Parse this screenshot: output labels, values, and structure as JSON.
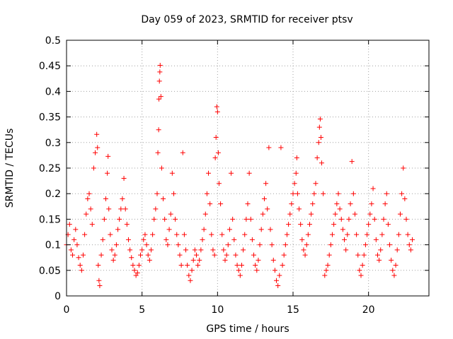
{
  "chart_data": {
    "type": "scatter",
    "title": "Day 059 of 2023, SRMTID for receiver ptsv",
    "xlabel": "GPS time / hours",
    "ylabel": "SRMTID / TECUs",
    "xlim": [
      0,
      24
    ],
    "ylim": [
      0,
      0.5
    ],
    "xticks": [
      0,
      5,
      10,
      15,
      20
    ],
    "xtick_labels": [
      "0",
      "5",
      "10",
      "15",
      "20"
    ],
    "yticks": [
      0,
      0.05,
      0.1,
      0.15,
      0.2,
      0.25,
      0.3,
      0.35,
      0.4,
      0.45,
      0.5
    ],
    "ytick_labels": [
      "0",
      "0.05",
      "0.1",
      "0.15",
      "0.2",
      "0.25",
      "0.3",
      "0.35",
      "0.4",
      "0.45",
      "0.5"
    ],
    "grid": true,
    "marker": "+",
    "color": "#ff0000",
    "series": [
      {
        "name": "SRMTID",
        "points": [
          [
            0.0,
            0.1
          ],
          [
            0.1,
            0.12
          ],
          [
            0.2,
            0.14
          ],
          [
            0.3,
            0.09
          ],
          [
            0.4,
            0.08
          ],
          [
            0.5,
            0.11
          ],
          [
            0.6,
            0.13
          ],
          [
            0.7,
            0.1
          ],
          [
            0.8,
            0.075
          ],
          [
            0.9,
            0.06
          ],
          [
            1.0,
            0.05
          ],
          [
            1.1,
            0.08
          ],
          [
            1.2,
            0.12
          ],
          [
            1.3,
            0.16
          ],
          [
            1.4,
            0.19
          ],
          [
            1.5,
            0.2
          ],
          [
            1.6,
            0.17
          ],
          [
            1.7,
            0.14
          ],
          [
            1.8,
            0.25
          ],
          [
            1.9,
            0.28
          ],
          [
            2.0,
            0.316
          ],
          [
            2.05,
            0.29
          ],
          [
            2.1,
            0.06
          ],
          [
            2.15,
            0.03
          ],
          [
            2.2,
            0.02
          ],
          [
            2.3,
            0.08
          ],
          [
            2.4,
            0.11
          ],
          [
            2.5,
            0.15
          ],
          [
            2.6,
            0.19
          ],
          [
            2.7,
            0.24
          ],
          [
            2.75,
            0.273
          ],
          [
            2.8,
            0.17
          ],
          [
            2.9,
            0.12
          ],
          [
            3.0,
            0.09
          ],
          [
            3.1,
            0.07
          ],
          [
            3.2,
            0.08
          ],
          [
            3.3,
            0.1
          ],
          [
            3.4,
            0.13
          ],
          [
            3.5,
            0.15
          ],
          [
            3.6,
            0.17
          ],
          [
            3.7,
            0.19
          ],
          [
            3.8,
            0.23
          ],
          [
            3.9,
            0.17
          ],
          [
            4.0,
            0.14
          ],
          [
            4.1,
            0.11
          ],
          [
            4.2,
            0.09
          ],
          [
            4.3,
            0.075
          ],
          [
            4.4,
            0.06
          ],
          [
            4.5,
            0.05
          ],
          [
            4.6,
            0.04
          ],
          [
            4.7,
            0.045
          ],
          [
            4.8,
            0.06
          ],
          [
            4.9,
            0.08
          ],
          [
            5.0,
            0.09
          ],
          [
            5.1,
            0.11
          ],
          [
            5.2,
            0.12
          ],
          [
            5.3,
            0.1
          ],
          [
            5.4,
            0.08
          ],
          [
            5.5,
            0.07
          ],
          [
            5.6,
            0.09
          ],
          [
            5.7,
            0.12
          ],
          [
            5.8,
            0.15
          ],
          [
            5.9,
            0.17
          ],
          [
            6.0,
            0.2
          ],
          [
            6.05,
            0.28
          ],
          [
            6.1,
            0.325
          ],
          [
            6.12,
            0.385
          ],
          [
            6.15,
            0.42
          ],
          [
            6.18,
            0.438
          ],
          [
            6.2,
            0.451
          ],
          [
            6.25,
            0.39
          ],
          [
            6.3,
            0.25
          ],
          [
            6.4,
            0.19
          ],
          [
            6.5,
            0.15
          ],
          [
            6.6,
            0.11
          ],
          [
            6.7,
            0.1
          ],
          [
            6.8,
            0.13
          ],
          [
            6.9,
            0.16
          ],
          [
            7.0,
            0.24
          ],
          [
            7.1,
            0.2
          ],
          [
            7.2,
            0.15
          ],
          [
            7.3,
            0.12
          ],
          [
            7.4,
            0.1
          ],
          [
            7.5,
            0.08
          ],
          [
            7.6,
            0.06
          ],
          [
            7.7,
            0.28
          ],
          [
            7.8,
            0.12
          ],
          [
            7.9,
            0.09
          ],
          [
            8.0,
            0.06
          ],
          [
            8.1,
            0.04
          ],
          [
            8.2,
            0.03
          ],
          [
            8.3,
            0.05
          ],
          [
            8.4,
            0.07
          ],
          [
            8.5,
            0.09
          ],
          [
            8.6,
            0.08
          ],
          [
            8.7,
            0.06
          ],
          [
            8.8,
            0.07
          ],
          [
            8.9,
            0.09
          ],
          [
            9.0,
            0.11
          ],
          [
            9.1,
            0.13
          ],
          [
            9.2,
            0.16
          ],
          [
            9.3,
            0.2
          ],
          [
            9.4,
            0.24
          ],
          [
            9.5,
            0.18
          ],
          [
            9.6,
            0.12
          ],
          [
            9.7,
            0.09
          ],
          [
            9.8,
            0.08
          ],
          [
            9.85,
            0.27
          ],
          [
            9.9,
            0.31
          ],
          [
            9.95,
            0.37
          ],
          [
            10.0,
            0.36
          ],
          [
            10.05,
            0.28
          ],
          [
            10.1,
            0.22
          ],
          [
            10.2,
            0.18
          ],
          [
            10.3,
            0.12
          ],
          [
            10.4,
            0.09
          ],
          [
            10.5,
            0.07
          ],
          [
            10.6,
            0.08
          ],
          [
            10.7,
            0.1
          ],
          [
            10.8,
            0.13
          ],
          [
            10.9,
            0.24
          ],
          [
            11.0,
            0.15
          ],
          [
            11.1,
            0.11
          ],
          [
            11.2,
            0.08
          ],
          [
            11.3,
            0.06
          ],
          [
            11.4,
            0.05
          ],
          [
            11.5,
            0.04
          ],
          [
            11.6,
            0.06
          ],
          [
            11.7,
            0.09
          ],
          [
            11.8,
            0.12
          ],
          [
            11.9,
            0.15
          ],
          [
            12.0,
            0.18
          ],
          [
            12.1,
            0.24
          ],
          [
            12.2,
            0.15
          ],
          [
            12.3,
            0.11
          ],
          [
            12.4,
            0.08
          ],
          [
            12.5,
            0.06
          ],
          [
            12.6,
            0.05
          ],
          [
            12.7,
            0.07
          ],
          [
            12.8,
            0.1
          ],
          [
            12.9,
            0.13
          ],
          [
            13.0,
            0.16
          ],
          [
            13.1,
            0.19
          ],
          [
            13.2,
            0.22
          ],
          [
            13.3,
            0.17
          ],
          [
            13.4,
            0.29
          ],
          [
            13.5,
            0.13
          ],
          [
            13.6,
            0.1
          ],
          [
            13.7,
            0.07
          ],
          [
            13.8,
            0.05
          ],
          [
            13.9,
            0.03
          ],
          [
            14.0,
            0.02
          ],
          [
            14.1,
            0.04
          ],
          [
            14.2,
            0.29
          ],
          [
            14.3,
            0.06
          ],
          [
            14.4,
            0.08
          ],
          [
            14.5,
            0.1
          ],
          [
            14.6,
            0.12
          ],
          [
            14.7,
            0.14
          ],
          [
            14.8,
            0.16
          ],
          [
            14.9,
            0.18
          ],
          [
            15.0,
            0.2
          ],
          [
            15.1,
            0.22
          ],
          [
            15.2,
            0.24
          ],
          [
            15.25,
            0.27
          ],
          [
            15.3,
            0.2
          ],
          [
            15.4,
            0.17
          ],
          [
            15.5,
            0.14
          ],
          [
            15.6,
            0.11
          ],
          [
            15.7,
            0.09
          ],
          [
            15.8,
            0.08
          ],
          [
            15.9,
            0.1
          ],
          [
            16.0,
            0.12
          ],
          [
            16.1,
            0.14
          ],
          [
            16.2,
            0.16
          ],
          [
            16.3,
            0.18
          ],
          [
            16.4,
            0.2
          ],
          [
            16.5,
            0.22
          ],
          [
            16.6,
            0.27
          ],
          [
            16.7,
            0.3
          ],
          [
            16.75,
            0.33
          ],
          [
            16.8,
            0.346
          ],
          [
            16.85,
            0.31
          ],
          [
            16.9,
            0.26
          ],
          [
            17.0,
            0.2
          ],
          [
            17.1,
            0.04
          ],
          [
            17.2,
            0.05
          ],
          [
            17.3,
            0.06
          ],
          [
            17.4,
            0.08
          ],
          [
            17.5,
            0.1
          ],
          [
            17.6,
            0.12
          ],
          [
            17.7,
            0.14
          ],
          [
            17.8,
            0.16
          ],
          [
            17.9,
            0.18
          ],
          [
            18.0,
            0.2
          ],
          [
            18.1,
            0.17
          ],
          [
            18.2,
            0.15
          ],
          [
            18.3,
            0.13
          ],
          [
            18.4,
            0.11
          ],
          [
            18.5,
            0.09
          ],
          [
            18.6,
            0.12
          ],
          [
            18.7,
            0.15
          ],
          [
            18.8,
            0.18
          ],
          [
            18.9,
            0.263
          ],
          [
            19.0,
            0.2
          ],
          [
            19.1,
            0.16
          ],
          [
            19.2,
            0.12
          ],
          [
            19.3,
            0.08
          ],
          [
            19.4,
            0.05
          ],
          [
            19.5,
            0.04
          ],
          [
            19.6,
            0.06
          ],
          [
            19.7,
            0.08
          ],
          [
            19.8,
            0.1
          ],
          [
            19.9,
            0.12
          ],
          [
            20.0,
            0.14
          ],
          [
            20.1,
            0.16
          ],
          [
            20.2,
            0.18
          ],
          [
            20.3,
            0.21
          ],
          [
            20.4,
            0.15
          ],
          [
            20.5,
            0.11
          ],
          [
            20.6,
            0.08
          ],
          [
            20.7,
            0.07
          ],
          [
            20.8,
            0.09
          ],
          [
            20.9,
            0.12
          ],
          [
            21.0,
            0.15
          ],
          [
            21.1,
            0.18
          ],
          [
            21.2,
            0.2
          ],
          [
            21.3,
            0.14
          ],
          [
            21.4,
            0.1
          ],
          [
            21.5,
            0.07
          ],
          [
            21.6,
            0.05
          ],
          [
            21.7,
            0.04
          ],
          [
            21.8,
            0.06
          ],
          [
            21.9,
            0.09
          ],
          [
            22.0,
            0.12
          ],
          [
            22.1,
            0.16
          ],
          [
            22.2,
            0.2
          ],
          [
            22.3,
            0.25
          ],
          [
            22.4,
            0.19
          ],
          [
            22.5,
            0.15
          ],
          [
            22.6,
            0.12
          ],
          [
            22.7,
            0.1
          ],
          [
            22.8,
            0.09
          ],
          [
            22.9,
            0.11
          ]
        ]
      }
    ]
  }
}
